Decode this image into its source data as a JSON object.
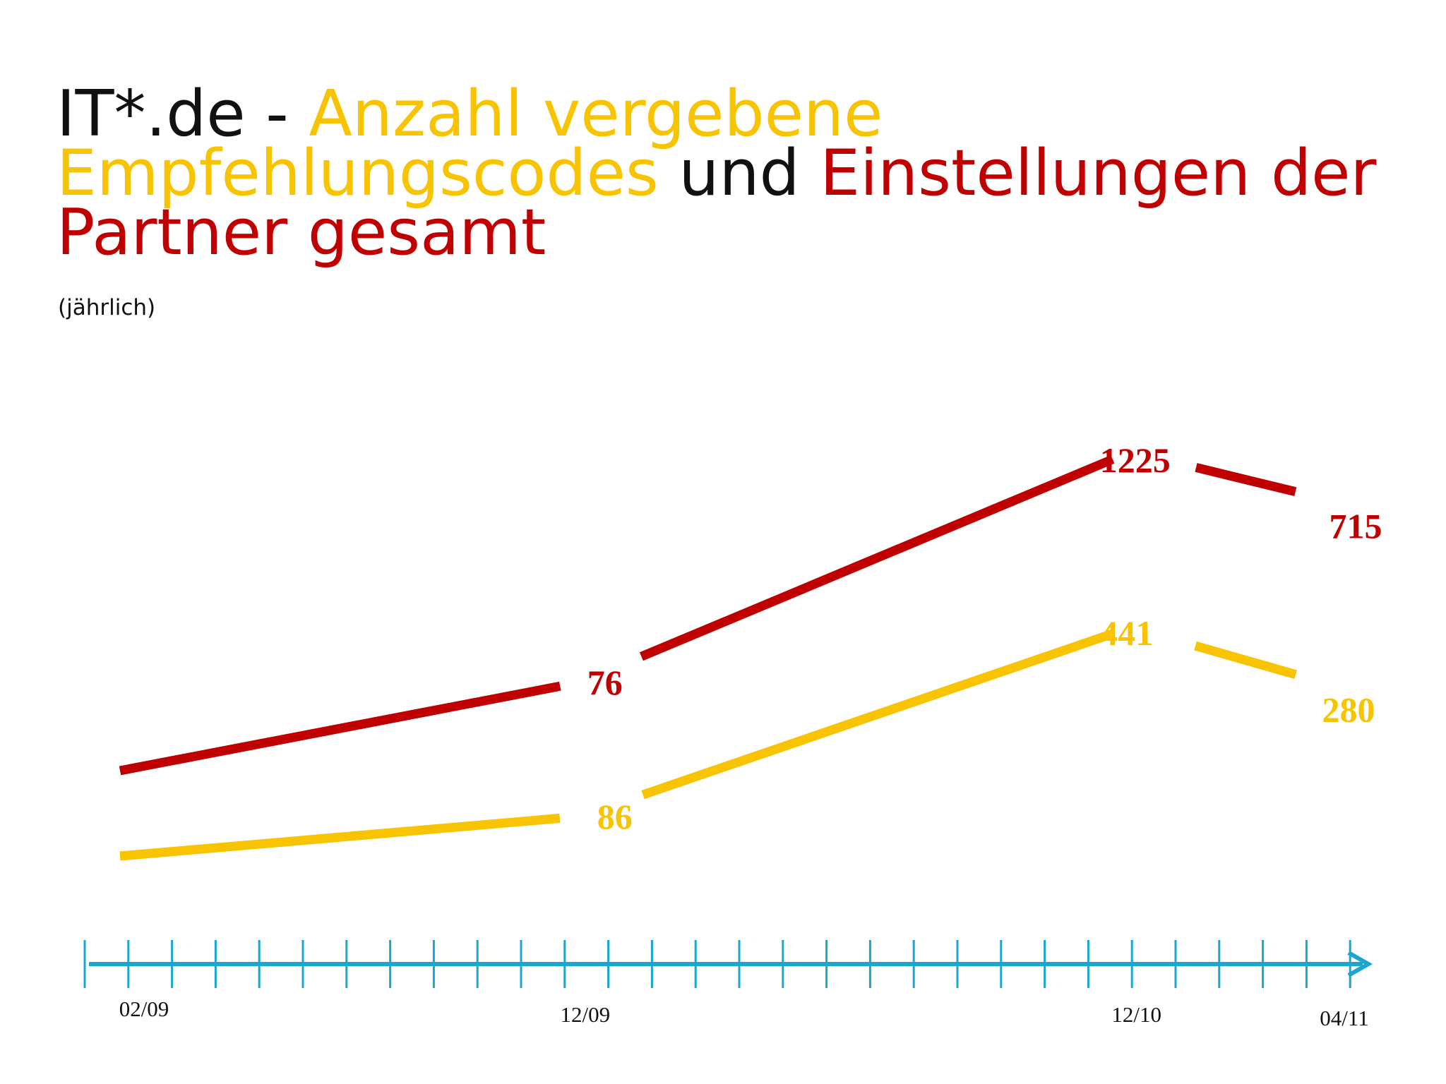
{
  "title": {
    "part1": "IT*.de - ",
    "part2": "Anzahl vergebene Empfehlungscodes",
    "part3": " und ",
    "part4": "Einstellungen der Partner gesamt"
  },
  "subtitle": "(jährlich)",
  "colors": {
    "text": "#111111",
    "referral_codes": "#f8c300",
    "placements": "#c00000",
    "axis": "#1aa7cf"
  },
  "chart_data": {
    "type": "line",
    "title": "IT*.de - Anzahl vergebene Empfehlungscodes und Einstellungen der Partner gesamt",
    "subtitle": "(jährlich)",
    "x": [
      "02/09",
      "12/09",
      "12/10",
      "04/11"
    ],
    "x_months": [
      0,
      10,
      22,
      26
    ],
    "series": [
      {
        "id": "placements",
        "color": "#c00000",
        "values": [
          null,
          76,
          1225,
          715
        ],
        "labels": [
          "",
          "76",
          "1225",
          "715"
        ]
      },
      {
        "id": "referral_codes",
        "color": "#f8c300",
        "values": [
          null,
          86,
          441,
          280
        ],
        "labels": [
          "",
          "86",
          "441",
          "280"
        ]
      }
    ],
    "axis": {
      "ticks_count": 30,
      "tick_labels": [
        "02/09",
        "12/09",
        "12/10",
        "04/11"
      ]
    },
    "grid": false,
    "legend": "none"
  }
}
